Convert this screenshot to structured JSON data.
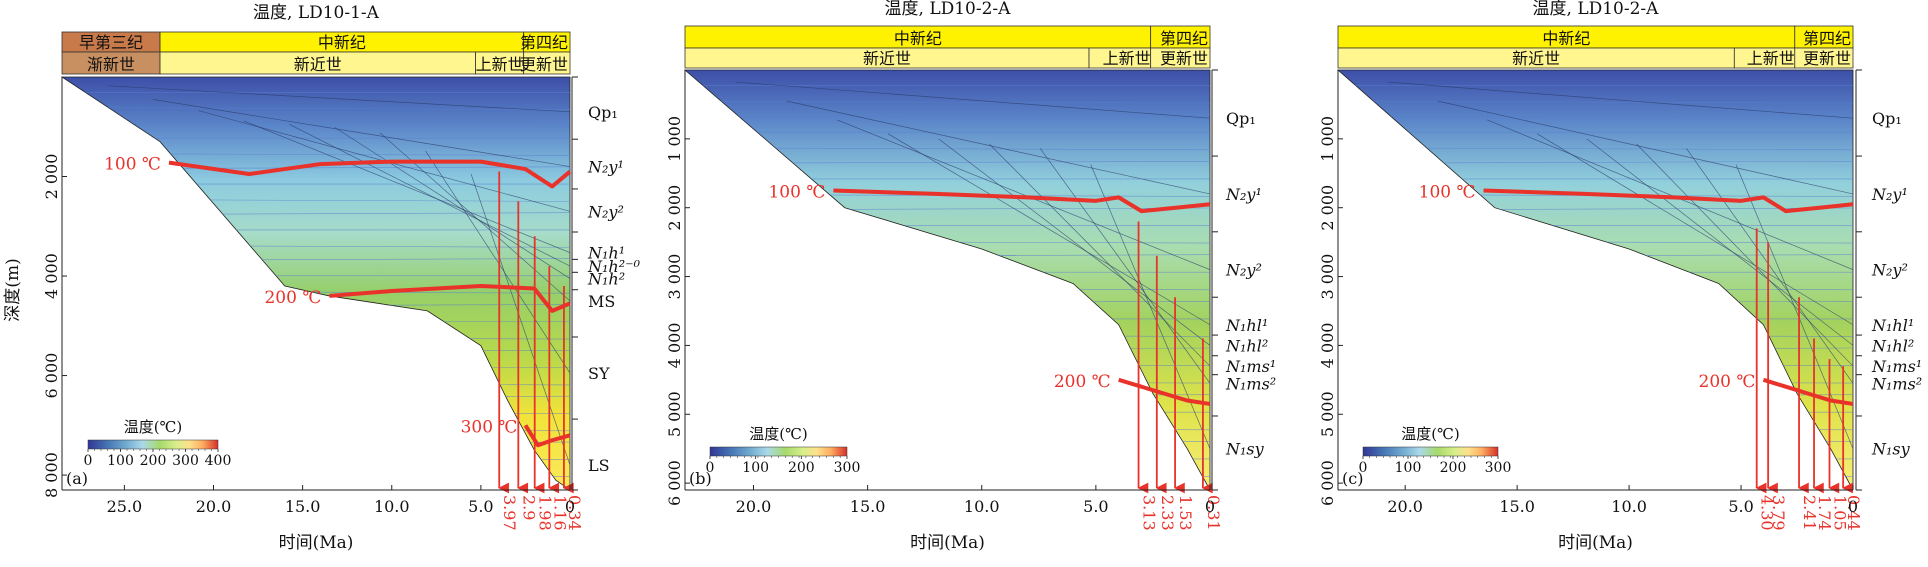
{
  "chart_data": [
    {
      "panel_id": "a",
      "type": "area",
      "title": "温度, LD10-1-A",
      "panel_label": "(a)",
      "xlabel": "时间(Ma)",
      "ylabel": "深度(m)",
      "xlim": [
        28.5,
        0
      ],
      "ylim": [
        0,
        8300
      ],
      "x_ticks": [
        "25.0",
        "20.0",
        "15.0",
        "10.0",
        "5.0",
        "0"
      ],
      "x_tick_values": [
        25,
        20,
        15,
        10,
        5,
        0
      ],
      "y_ticks": [
        "2 000",
        "4 000",
        "6 000",
        "8 000"
      ],
      "y_tick_values": [
        2000,
        4000,
        6000,
        8000
      ],
      "period_bar": [
        {
          "label": "早第三纪",
          "from": 28.5,
          "to": 23.0,
          "color": "#c87a4a"
        },
        {
          "label": "中新纪",
          "from": 23.0,
          "to": 2.6,
          "color": "#fff200"
        },
        {
          "label": "第四纪",
          "from": 2.6,
          "to": 0,
          "color": "#fff200"
        }
      ],
      "epoch_bar": [
        {
          "label": "渐新世",
          "from": 28.5,
          "to": 23.0,
          "color": "#c89060"
        },
        {
          "label": "新近世",
          "from": 23.0,
          "to": 5.3,
          "color": "#fff68f"
        },
        {
          "label": "上新世",
          "from": 5.3,
          "to": 2.6,
          "color": "#fff68f"
        },
        {
          "label": "更新世",
          "from": 2.6,
          "to": 0,
          "color": "#fff68f"
        }
      ],
      "basement": [
        [
          28.5,
          0
        ],
        [
          23.0,
          1300
        ],
        [
          16.0,
          4200
        ],
        [
          13.5,
          4400
        ],
        [
          8.0,
          4700
        ],
        [
          5.0,
          5400
        ],
        [
          3.5,
          6500
        ],
        [
          2.0,
          7500
        ],
        [
          0.8,
          8100
        ],
        [
          0,
          8300
        ]
      ],
      "legend": {
        "title": "温度(℃)",
        "ticks": [
          "0",
          "100",
          "200",
          "300",
          "400"
        ],
        "max": 400
      },
      "isotherms": [
        {
          "label": "100 ℃",
          "points": [
            [
              22.5,
              1720
            ],
            [
              18.0,
              1950
            ],
            [
              14.0,
              1750
            ],
            [
              10.0,
              1700
            ],
            [
              5.0,
              1700
            ],
            [
              2.5,
              1850
            ],
            [
              1.0,
              2200
            ],
            [
              0,
              1900
            ]
          ]
        },
        {
          "label": "200 ℃",
          "points": [
            [
              13.5,
              4400
            ],
            [
              10.0,
              4300
            ],
            [
              5.0,
              4200
            ],
            [
              2.0,
              4250
            ],
            [
              1.0,
              4700
            ],
            [
              0,
              4550
            ]
          ]
        },
        {
          "label": "300 ℃",
          "points": [
            [
              2.5,
              7000
            ],
            [
              1.8,
              7400
            ],
            [
              1.0,
              7300
            ],
            [
              0,
              7200
            ]
          ]
        }
      ],
      "stratigraphy": [
        "Qp₁",
        "N₂y¹",
        "N₂y²",
        "N₁h¹",
        "N₁h²⁻⁰",
        "N₁h²",
        "MS",
        "SY",
        "LS"
      ],
      "strat_depths": [
        700,
        1800,
        2700,
        3530,
        3800,
        4050,
        4500,
        5950,
        7800
      ],
      "sample_times": [
        "3.97",
        "2.9",
        "1.98",
        "1.16",
        "0.34"
      ],
      "sample_values": [
        3.97,
        2.9,
        1.98,
        1.16,
        0.34
      ],
      "arrow_tops": [
        1900,
        2500,
        3200,
        3800,
        4200
      ]
    },
    {
      "panel_id": "b",
      "type": "area",
      "title": "温度, LD10-2-A",
      "panel_label": "(b)",
      "xlabel": "时间(Ma)",
      "ylabel": "",
      "xlim": [
        23.0,
        0
      ],
      "ylim": [
        0,
        6100
      ],
      "x_ticks": [
        "20.0",
        "15.0",
        "10.0",
        "5.0",
        "0"
      ],
      "x_tick_values": [
        20,
        15,
        10,
        5,
        0
      ],
      "y_ticks": [
        "1 000",
        "2 000",
        "3 000",
        "4 000",
        "5 000",
        "6 000"
      ],
      "y_tick_values": [
        1000,
        2000,
        3000,
        4000,
        5000,
        6000
      ],
      "period_bar": [
        {
          "label": "中新纪",
          "from": 23.0,
          "to": 2.6,
          "color": "#fff200"
        },
        {
          "label": "第四纪",
          "from": 2.6,
          "to": 0,
          "color": "#fff200"
        }
      ],
      "epoch_bar": [
        {
          "label": "新近世",
          "from": 23.0,
          "to": 5.3,
          "color": "#fff68f"
        },
        {
          "label": "上新世",
          "from": 5.3,
          "to": 2.6,
          "color": "#fff68f"
        },
        {
          "label": "更新世",
          "from": 2.6,
          "to": 0,
          "color": "#fff68f"
        }
      ],
      "basement": [
        [
          23.0,
          0
        ],
        [
          16.0,
          2000
        ],
        [
          10.0,
          2600
        ],
        [
          6.0,
          3100
        ],
        [
          4.0,
          3700
        ],
        [
          2.5,
          4700
        ],
        [
          1.0,
          5500
        ],
        [
          0,
          6100
        ]
      ],
      "legend": {
        "title": "温度(℃)",
        "ticks": [
          "0",
          "100",
          "200",
          "300"
        ],
        "max": 300
      },
      "isotherms": [
        {
          "label": "100 ℃",
          "points": [
            [
              16.5,
              1750
            ],
            [
              12.0,
              1800
            ],
            [
              8.0,
              1850
            ],
            [
              5.0,
              1900
            ],
            [
              4.0,
              1850
            ],
            [
              3.0,
              2050
            ],
            [
              1.5,
              2000
            ],
            [
              0,
              1950
            ]
          ]
        },
        {
          "label": "200 ℃",
          "points": [
            [
              4.0,
              4500
            ],
            [
              3.0,
              4600
            ],
            [
              2.0,
              4700
            ],
            [
              1.0,
              4800
            ],
            [
              0,
              4850
            ]
          ]
        }
      ],
      "stratigraphy": [
        "Qp₁",
        "N₂y¹",
        "N₂y²",
        "N₁hl¹",
        "N₁hl²",
        "N₁ms¹",
        "N₁ms²",
        "N₁sy"
      ],
      "strat_depths": [
        700,
        1800,
        2900,
        3700,
        4000,
        4300,
        4550,
        5500
      ],
      "sample_times": [
        "3.13",
        "2.33",
        "1.53",
        "0.31"
      ],
      "sample_values": [
        3.13,
        2.33,
        1.53,
        0.31
      ],
      "arrow_tops": [
        2200,
        2700,
        3300,
        3900
      ]
    },
    {
      "panel_id": "c",
      "type": "area",
      "title": "温度, LD10-2-A",
      "panel_label": "(c)",
      "xlabel": "时间(Ma)",
      "ylabel": "",
      "xlim": [
        23.0,
        0
      ],
      "ylim": [
        0,
        6100
      ],
      "x_ticks": [
        "20.0",
        "15.0",
        "10.0",
        "5.0",
        "0"
      ],
      "x_tick_values": [
        20,
        15,
        10,
        5,
        0
      ],
      "y_ticks": [
        "1 000",
        "2 000",
        "3 000",
        "4 000",
        "5 000",
        "6 000"
      ],
      "y_tick_values": [
        1000,
        2000,
        3000,
        4000,
        5000,
        6000
      ],
      "period_bar": [
        {
          "label": "中新纪",
          "from": 23.0,
          "to": 2.6,
          "color": "#fff200"
        },
        {
          "label": "第四纪",
          "from": 2.6,
          "to": 0,
          "color": "#fff200"
        }
      ],
      "epoch_bar": [
        {
          "label": "新近世",
          "from": 23.0,
          "to": 5.3,
          "color": "#fff68f"
        },
        {
          "label": "上新世",
          "from": 5.3,
          "to": 2.6,
          "color": "#fff68f"
        },
        {
          "label": "更新世",
          "from": 2.6,
          "to": 0,
          "color": "#fff68f"
        }
      ],
      "basement": [
        [
          23.0,
          0
        ],
        [
          16.0,
          2000
        ],
        [
          10.0,
          2600
        ],
        [
          6.0,
          3100
        ],
        [
          4.0,
          3700
        ],
        [
          2.5,
          4700
        ],
        [
          1.0,
          5500
        ],
        [
          0,
          6100
        ]
      ],
      "legend": {
        "title": "温度(℃)",
        "ticks": [
          "0",
          "100",
          "200",
          "300"
        ],
        "max": 300
      },
      "isotherms": [
        {
          "label": "100 ℃",
          "points": [
            [
              16.5,
              1750
            ],
            [
              12.0,
              1800
            ],
            [
              8.0,
              1850
            ],
            [
              5.0,
              1900
            ],
            [
              4.0,
              1850
            ],
            [
              3.0,
              2050
            ],
            [
              1.5,
              2000
            ],
            [
              0,
              1950
            ]
          ]
        },
        {
          "label": "200 ℃",
          "points": [
            [
              4.0,
              4500
            ],
            [
              3.0,
              4600
            ],
            [
              2.0,
              4700
            ],
            [
              1.0,
              4800
            ],
            [
              0,
              4850
            ]
          ]
        }
      ],
      "stratigraphy": [
        "Qp₁",
        "N₂y¹",
        "N₂y²",
        "N₁hl¹",
        "N₁hl²",
        "N₁ms¹",
        "N₁ms²",
        "N₁sy"
      ],
      "strat_depths": [
        700,
        1800,
        2900,
        3700,
        4000,
        4300,
        4550,
        5500
      ],
      "sample_times": [
        "4.30",
        "3.79",
        "2.41",
        "1.74",
        "1.05",
        "0.44"
      ],
      "sample_values": [
        4.3,
        3.79,
        2.41,
        1.74,
        1.05,
        0.44
      ],
      "arrow_tops": [
        2300,
        2500,
        3300,
        3900,
        4200,
        4300
      ]
    }
  ],
  "colors": {
    "isotherm": "#e8322a",
    "sample_arrow": "#e8322a",
    "contour": "#5a7fd0",
    "grid": "#333333"
  }
}
